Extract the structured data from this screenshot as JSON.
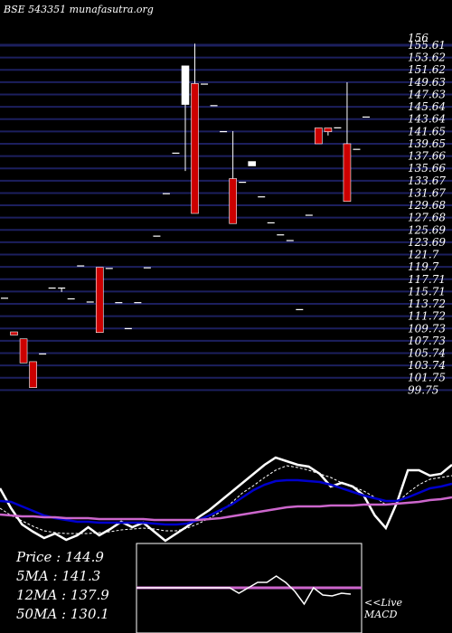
{
  "header": "BSE 543351 munafasutra.org",
  "colors": {
    "background": "#000000",
    "grid": "#1c1f5e",
    "up": "#ffffff",
    "down": "#cc0000",
    "ma_short": "#ffffff",
    "ma_mid": "#0000cc",
    "ma_long": "#cc66cc",
    "macd_box": "#ffffff"
  },
  "chart_data": [
    {
      "type": "candlestick",
      "title": "",
      "y_ticks": [
        "156",
        "155.61",
        "153.62",
        "151.62",
        "149.63",
        "147.63",
        "145.64",
        "143.64",
        "141.65",
        "139.65",
        "137.66",
        "135.66",
        "133.67",
        "131.67",
        "129.68",
        "127.68",
        "125.69",
        "123.69",
        "121.7",
        "119.7",
        "117.71",
        "115.71",
        "113.72",
        "111.72",
        "109.73",
        "107.73",
        "105.74",
        "103.74",
        "101.75",
        "99.75"
      ],
      "ylim": [
        99.75,
        156
      ],
      "candles": [
        {
          "o": 115.0,
          "h": 115.0,
          "l": 115.0,
          "c": 115.0
        },
        {
          "o": 109.6,
          "h": 109.6,
          "l": 109.1,
          "c": 109.1
        },
        {
          "o": 108.5,
          "h": 108.5,
          "l": 104.7,
          "c": 104.7
        },
        {
          "o": 104.9,
          "h": 104.9,
          "l": 100.8,
          "c": 100.8
        },
        {
          "o": 106.2,
          "h": 106.2,
          "l": 106.2,
          "c": 106.2
        },
        {
          "o": 116.6,
          "h": 116.6,
          "l": 116.6,
          "c": 116.6
        },
        {
          "o": 116.6,
          "h": 116.6,
          "l": 115.9,
          "c": 116.6
        },
        {
          "o": 114.9,
          "h": 114.9,
          "l": 114.9,
          "c": 114.9
        },
        {
          "o": 120.1,
          "h": 120.1,
          "l": 120.1,
          "c": 120.1
        },
        {
          "o": 114.4,
          "h": 114.4,
          "l": 114.4,
          "c": 114.4
        },
        {
          "o": 119.8,
          "h": 119.8,
          "l": 109.5,
          "c": 109.5
        },
        {
          "o": 119.7,
          "h": 119.7,
          "l": 119.7,
          "c": 119.7
        },
        {
          "o": 114.3,
          "h": 114.3,
          "l": 114.3,
          "c": 114.3
        },
        {
          "o": 110.2,
          "h": 110.2,
          "l": 110.2,
          "c": 110.2
        },
        {
          "o": 114.3,
          "h": 114.3,
          "l": 114.3,
          "c": 114.3
        },
        {
          "o": 119.8,
          "h": 119.8,
          "l": 119.8,
          "c": 119.8
        },
        {
          "o": 124.8,
          "h": 124.8,
          "l": 124.8,
          "c": 124.8
        },
        {
          "o": 131.5,
          "h": 131.5,
          "l": 131.5,
          "c": 131.5
        },
        {
          "o": 137.9,
          "h": 137.9,
          "l": 137.9,
          "c": 137.9
        },
        {
          "o": 145.5,
          "h": 151.6,
          "l": 135.0,
          "c": 151.6
        },
        {
          "o": 148.8,
          "h": 155.1,
          "l": 128.3,
          "c": 128.3
        },
        {
          "o": 148.8,
          "h": 148.8,
          "l": 148.8,
          "c": 148.8
        },
        {
          "o": 145.4,
          "h": 145.4,
          "l": 145.4,
          "c": 145.4
        },
        {
          "o": 141.3,
          "h": 141.3,
          "l": 141.3,
          "c": 141.3
        },
        {
          "o": 133.8,
          "h": 141.3,
          "l": 126.7,
          "c": 126.7
        },
        {
          "o": 133.3,
          "h": 133.3,
          "l": 133.3,
          "c": 133.3
        },
        {
          "o": 135.8,
          "h": 136.5,
          "l": 135.8,
          "c": 136.5
        },
        {
          "o": 131.0,
          "h": 131.0,
          "l": 131.0,
          "c": 131.0
        },
        {
          "o": 126.9,
          "h": 126.9,
          "l": 126.9,
          "c": 126.9
        },
        {
          "o": 125.0,
          "h": 125.0,
          "l": 125.0,
          "c": 125.0
        },
        {
          "o": 124.1,
          "h": 124.1,
          "l": 124.1,
          "c": 124.1
        },
        {
          "o": 113.2,
          "h": 113.2,
          "l": 113.2,
          "c": 113.2
        },
        {
          "o": 128.1,
          "h": 128.1,
          "l": 128.1,
          "c": 128.1
        },
        {
          "o": 141.8,
          "h": 141.8,
          "l": 139.3,
          "c": 139.3
        },
        {
          "o": 141.8,
          "h": 141.8,
          "l": 140.6,
          "c": 141.2
        },
        {
          "o": 141.9,
          "h": 141.9,
          "l": 141.9,
          "c": 141.9
        },
        {
          "o": 139.3,
          "h": 149.0,
          "l": 130.2,
          "c": 130.2
        },
        {
          "o": 138.5,
          "h": 138.5,
          "l": 138.5,
          "c": 138.5
        },
        {
          "o": 143.6,
          "h": 143.6,
          "l": 143.6,
          "c": 143.6
        }
      ]
    },
    {
      "type": "line",
      "title": "",
      "series": [
        {
          "color": "#ffffff",
          "values": [
            0.6,
            0.38,
            0.2,
            0.12,
            0.05,
            0.1,
            0.03,
            0.08,
            0.17,
            0.08,
            0.15,
            0.23,
            0.17,
            0.22,
            0.12,
            0.02,
            0.1,
            0.18,
            0.28,
            0.36,
            0.46,
            0.56,
            0.66,
            0.76,
            0.86,
            0.94,
            0.9,
            0.86,
            0.84,
            0.76,
            0.62,
            0.66,
            0.62,
            0.52,
            0.3,
            0.16,
            0.44,
            0.8,
            0.8,
            0.74,
            0.76,
            0.86
          ]
        },
        {
          "color": "#ffffff",
          "values": [
            0.38,
            0.3,
            0.24,
            0.18,
            0.13,
            0.11,
            0.1,
            0.1,
            0.1,
            0.11,
            0.12,
            0.14,
            0.15,
            0.16,
            0.15,
            0.13,
            0.13,
            0.16,
            0.21,
            0.27,
            0.34,
            0.44,
            0.55,
            0.63,
            0.72,
            0.8,
            0.85,
            0.83,
            0.8,
            0.76,
            0.72,
            0.66,
            0.62,
            0.57,
            0.5,
            0.42,
            0.44,
            0.55,
            0.64,
            0.7,
            0.72,
            0.74
          ]
        },
        {
          "color": "#0000cc",
          "values": [
            0.46,
            0.45,
            0.4,
            0.35,
            0.3,
            0.27,
            0.25,
            0.23,
            0.23,
            0.22,
            0.22,
            0.22,
            0.22,
            0.22,
            0.21,
            0.2,
            0.2,
            0.21,
            0.25,
            0.3,
            0.36,
            0.42,
            0.5,
            0.58,
            0.64,
            0.68,
            0.69,
            0.69,
            0.68,
            0.67,
            0.64,
            0.6,
            0.56,
            0.52,
            0.49,
            0.46,
            0.46,
            0.5,
            0.55,
            0.6,
            0.62,
            0.65
          ]
        },
        {
          "color": "#cc66cc",
          "values": [
            0.31,
            0.3,
            0.29,
            0.29,
            0.28,
            0.28,
            0.27,
            0.27,
            0.27,
            0.26,
            0.26,
            0.26,
            0.26,
            0.26,
            0.25,
            0.25,
            0.25,
            0.25,
            0.25,
            0.26,
            0.27,
            0.29,
            0.31,
            0.33,
            0.35,
            0.37,
            0.39,
            0.4,
            0.4,
            0.4,
            0.41,
            0.41,
            0.41,
            0.42,
            0.42,
            0.42,
            0.43,
            0.44,
            0.45,
            0.47,
            0.48,
            0.5
          ]
        }
      ]
    },
    {
      "type": "line",
      "title": "",
      "series": [
        {
          "color": "#cc66cc",
          "values": [
            0,
            0,
            0,
            0,
            0,
            0,
            0,
            0,
            0,
            0,
            0,
            0,
            0,
            0,
            0,
            0,
            0,
            0,
            0,
            0,
            0,
            0,
            0,
            0
          ]
        },
        {
          "color": "#ffffff",
          "values": [
            0,
            0,
            0,
            0,
            0,
            0,
            0,
            0,
            0,
            0,
            0,
            -0.3,
            0,
            0.3,
            0.3,
            0.65,
            0.3,
            -0.2,
            -0.9,
            0,
            -0.4,
            -0.45,
            -0.3,
            -0.35
          ]
        }
      ]
    }
  ],
  "stats": [
    {
      "label": "Price",
      "value": "144.9"
    },
    {
      "label": "5MA",
      "value": "141.3"
    },
    {
      "label": "12MA",
      "value": "137.9"
    },
    {
      "label": "50MA",
      "value": "130.1"
    }
  ],
  "macd_label": [
    "<<Live",
    "MACD"
  ]
}
